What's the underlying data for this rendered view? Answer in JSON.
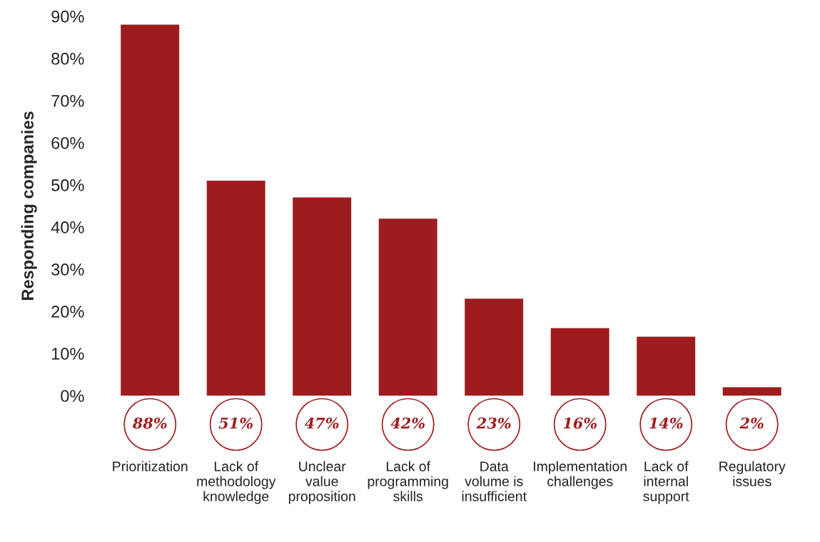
{
  "chart_data": {
    "type": "bar",
    "ylabel": "Responding companies",
    "categories": [
      "Prioritization",
      "Lack of\nmethodology\nknowledge",
      "Unclear\nvalue\nproposition",
      "Lack of\nprogramming\nskills",
      "Data\nvolume is\ninsufficient",
      "Implementation\nchallenges",
      "Lack of\ninternal\nsupport",
      "Regulatory\nissues"
    ],
    "values": [
      88,
      51,
      47,
      42,
      23,
      16,
      14,
      2
    ],
    "value_labels": [
      "88%",
      "51%",
      "47%",
      "42%",
      "23%",
      "16%",
      "14%",
      "2%"
    ],
    "color": "#9e1c1e",
    "ylim": [
      0,
      90
    ],
    "yticks": [
      {
        "value": 0,
        "label": "0%"
      },
      {
        "value": 10,
        "label": "10%"
      },
      {
        "value": 20,
        "label": "20%"
      },
      {
        "value": 30,
        "label": "30%"
      },
      {
        "value": 40,
        "label": "40%"
      },
      {
        "value": 50,
        "label": "50%"
      },
      {
        "value": 60,
        "label": "60%"
      },
      {
        "value": 70,
        "label": "70%"
      },
      {
        "value": 80,
        "label": "80%"
      },
      {
        "value": 90,
        "label": "90%"
      }
    ],
    "grid": false,
    "legend": false
  }
}
